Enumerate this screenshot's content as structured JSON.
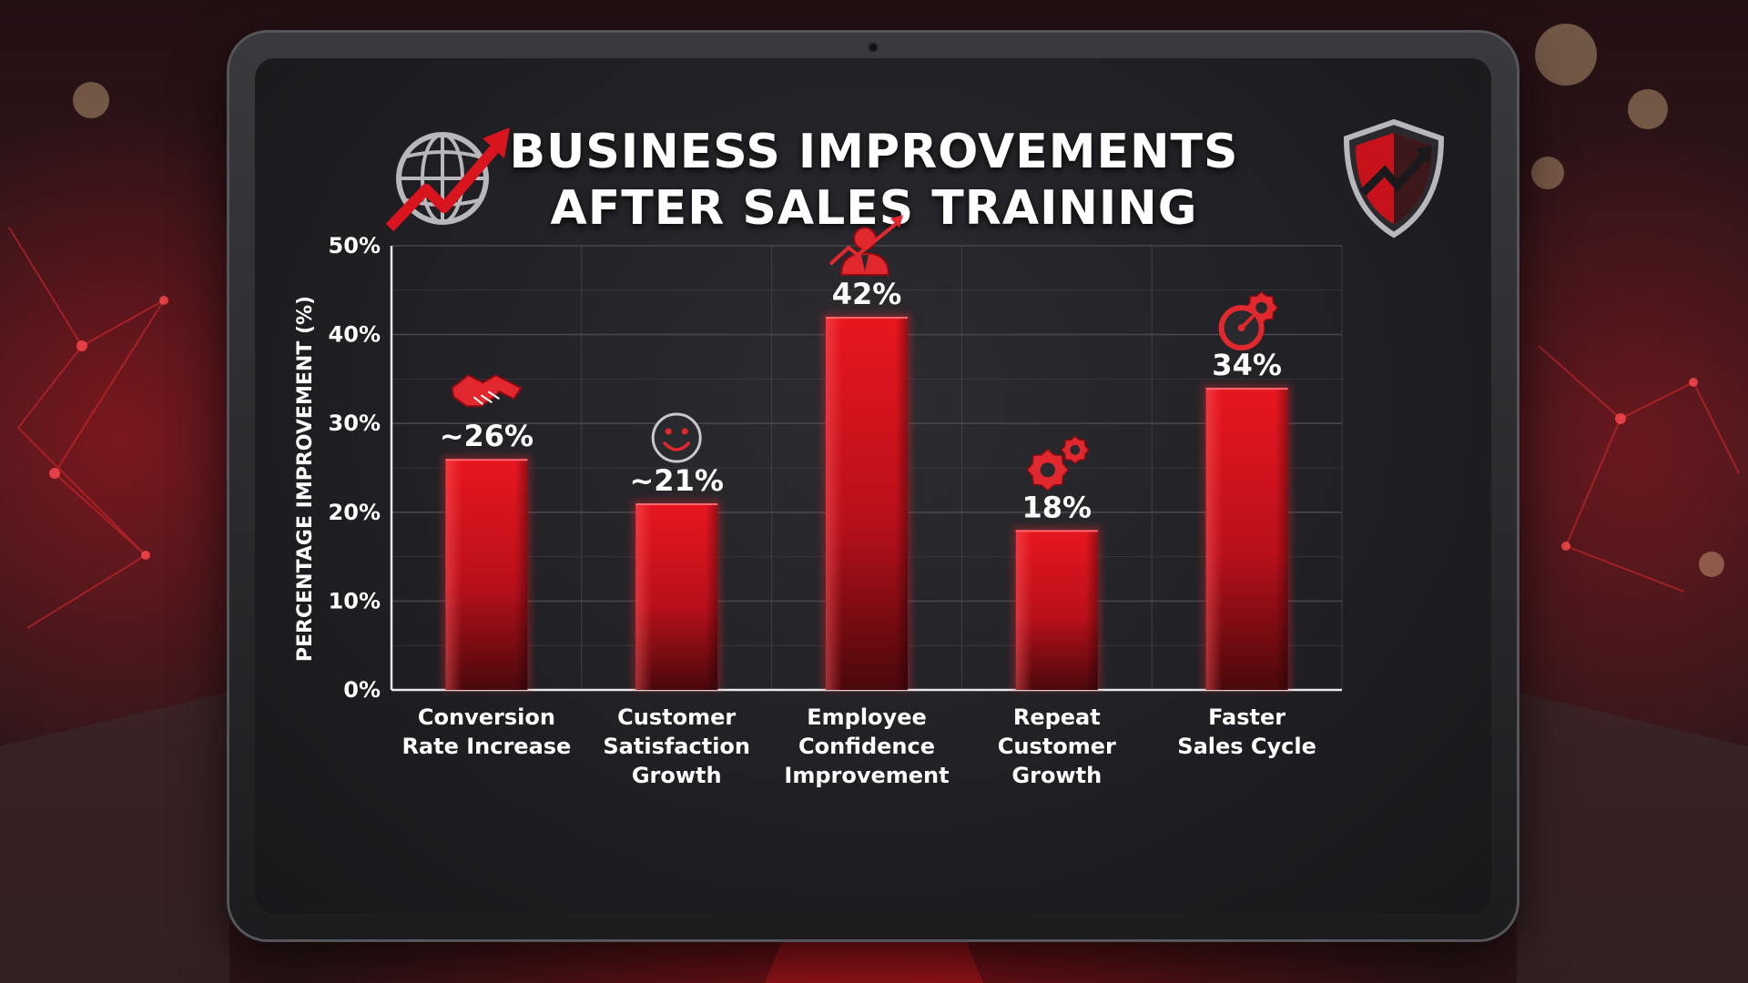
{
  "title_lines": [
    "BUSINESS IMPROVEMENTS",
    "AFTER SALES TRAINING"
  ],
  "icons": {
    "header_left": "globe-growth-arrow-icon",
    "header_right": "shield-icon",
    "bar_icons": [
      "handshake-icon",
      "smiley-face-icon",
      "businessman-growth-icon",
      "gears-icon",
      "speedometer-gear-icon"
    ]
  },
  "colors": {
    "bar": "#d8141e",
    "bar_dark": "#5a0a0e",
    "grid": "#4a4a50",
    "text": "#ffffff",
    "accent": "#e0282e"
  },
  "chart_data": {
    "type": "bar",
    "title": "BUSINESS IMPROVEMENTS AFTER SALES TRAINING",
    "categories": [
      [
        "Conversion",
        "Rate Increase"
      ],
      [
        "Customer",
        "Satisfaction",
        "Growth"
      ],
      [
        "Employee",
        "Confidence",
        "Improvement"
      ],
      [
        "Repeat",
        "Customer",
        "Growth"
      ],
      [
        "Faster",
        "Sales Cycle"
      ]
    ],
    "values": [
      26,
      21,
      42,
      18,
      34
    ],
    "data_labels": [
      "~26%",
      "~21%",
      "42%",
      "18%",
      "34%"
    ],
    "ylabel": "PERCENTAGE IMPROVEMENT (%)",
    "ylim": [
      0,
      50
    ],
    "yticks": [
      0,
      10,
      20,
      30,
      40,
      50
    ],
    "ytick_labels": [
      "0%",
      "10%",
      "20%",
      "30%",
      "40%",
      "50%"
    ],
    "grid": true,
    "legend": "none"
  }
}
